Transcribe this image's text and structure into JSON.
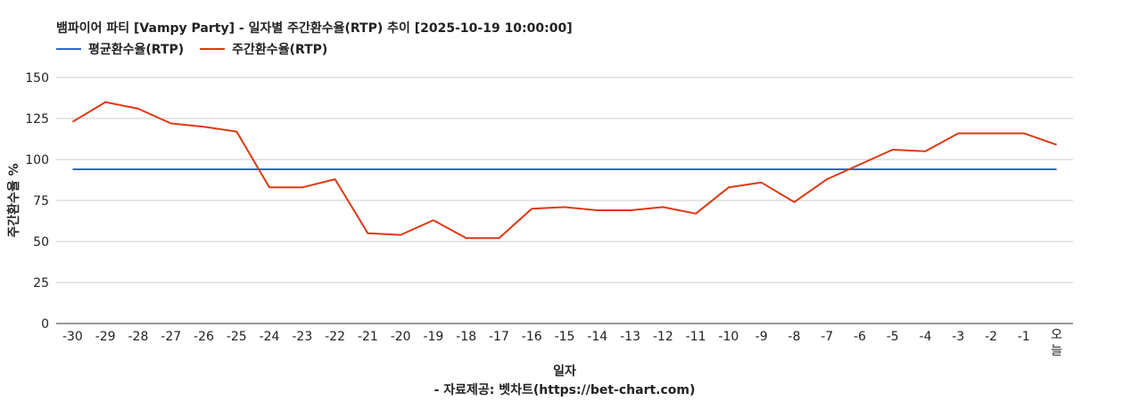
{
  "chart_data": {
    "type": "line",
    "title": "뱀파이어 파티 [Vampy Party] - 일자별 주간환수율(RTP) 추이 [2025-10-19 10:00:00]",
    "xlabel": "일자",
    "ylabel": "주간환수율 %",
    "source": "- 자료제공: 벳차트(https://bet-chart.com)",
    "ylim": [
      0,
      150
    ],
    "yticks": [
      0,
      25,
      50,
      75,
      100,
      125,
      150
    ],
    "grid": true,
    "legend_position": "top-left",
    "categories": [
      "-30",
      "-29",
      "-28",
      "-27",
      "-26",
      "-25",
      "-24",
      "-23",
      "-22",
      "-21",
      "-20",
      "-19",
      "-18",
      "-17",
      "-16",
      "-15",
      "-14",
      "-13",
      "-12",
      "-11",
      "-10",
      "-9",
      "-8",
      "-7",
      "-6",
      "-5",
      "-4",
      "-3",
      "-2",
      "-1",
      "오늘"
    ],
    "series": [
      {
        "name": "평균환수율(RTP)",
        "color": "#3366cc",
        "values": [
          94,
          94,
          94,
          94,
          94,
          94,
          94,
          94,
          94,
          94,
          94,
          94,
          94,
          94,
          94,
          94,
          94,
          94,
          94,
          94,
          94,
          94,
          94,
          94,
          94,
          94,
          94,
          94,
          94,
          94,
          94
        ]
      },
      {
        "name": "주간환수율(RTP)",
        "color": "#dc3912",
        "values": [
          123,
          135,
          131,
          122,
          120,
          117,
          83,
          83,
          88,
          55,
          54,
          63,
          52,
          52,
          70,
          71,
          69,
          69,
          71,
          67,
          83,
          86,
          74,
          88,
          97,
          106,
          105,
          116,
          116,
          116,
          109
        ]
      }
    ]
  }
}
